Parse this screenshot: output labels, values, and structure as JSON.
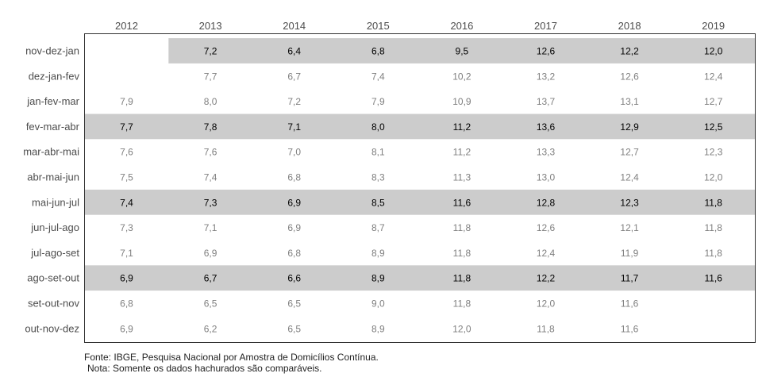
{
  "chart_data": {
    "type": "table",
    "columns": [
      "2012",
      "2013",
      "2014",
      "2015",
      "2016",
      "2017",
      "2018",
      "2019"
    ],
    "rows": [
      {
        "label": "nov-dez-jan",
        "highlight": true,
        "values": [
          "",
          "7,2",
          "6,4",
          "6,8",
          "9,5",
          "12,6",
          "12,2",
          "12,0"
        ]
      },
      {
        "label": "dez-jan-fev",
        "highlight": false,
        "values": [
          "",
          "7,7",
          "6,7",
          "7,4",
          "10,2",
          "13,2",
          "12,6",
          "12,4"
        ]
      },
      {
        "label": "jan-fev-mar",
        "highlight": false,
        "values": [
          "7,9",
          "8,0",
          "7,2",
          "7,9",
          "10,9",
          "13,7",
          "13,1",
          "12,7"
        ]
      },
      {
        "label": "fev-mar-abr",
        "highlight": true,
        "values": [
          "7,7",
          "7,8",
          "7,1",
          "8,0",
          "11,2",
          "13,6",
          "12,9",
          "12,5"
        ]
      },
      {
        "label": "mar-abr-mai",
        "highlight": false,
        "values": [
          "7,6",
          "7,6",
          "7,0",
          "8,1",
          "11,2",
          "13,3",
          "12,7",
          "12,3"
        ]
      },
      {
        "label": "abr-mai-jun",
        "highlight": false,
        "values": [
          "7,5",
          "7,4",
          "6,8",
          "8,3",
          "11,3",
          "13,0",
          "12,4",
          "12,0"
        ]
      },
      {
        "label": "mai-jun-jul",
        "highlight": true,
        "values": [
          "7,4",
          "7,3",
          "6,9",
          "8,5",
          "11,6",
          "12,8",
          "12,3",
          "11,8"
        ]
      },
      {
        "label": "jun-jul-ago",
        "highlight": false,
        "values": [
          "7,3",
          "7,1",
          "6,9",
          "8,7",
          "11,8",
          "12,6",
          "12,1",
          "11,8"
        ]
      },
      {
        "label": "jul-ago-set",
        "highlight": false,
        "values": [
          "7,1",
          "6,9",
          "6,8",
          "8,9",
          "11,8",
          "12,4",
          "11,9",
          "11,8"
        ]
      },
      {
        "label": "ago-set-out",
        "highlight": true,
        "values": [
          "6,9",
          "6,7",
          "6,6",
          "8,9",
          "11,8",
          "12,2",
          "11,7",
          "11,6"
        ]
      },
      {
        "label": "set-out-nov",
        "highlight": false,
        "values": [
          "6,8",
          "6,5",
          "6,5",
          "9,0",
          "11,8",
          "12,0",
          "11,6",
          ""
        ]
      },
      {
        "label": "out-nov-dez",
        "highlight": false,
        "values": [
          "6,9",
          "6,2",
          "6,5",
          "8,9",
          "12,0",
          "11,8",
          "11,6",
          ""
        ]
      }
    ],
    "colors": {
      "highlight_fill": "#cccccc",
      "highlight_text": "#000000",
      "normal_text": "#7f7f7f",
      "axis_text": "#4d4d4d",
      "border": "#333333"
    },
    "source": "Fonte: IBGE, Pesquisa Nacional por Amostra de Domicílios Contínua.",
    "note": "Nota: Somente os dados hachurados são comparáveis."
  }
}
